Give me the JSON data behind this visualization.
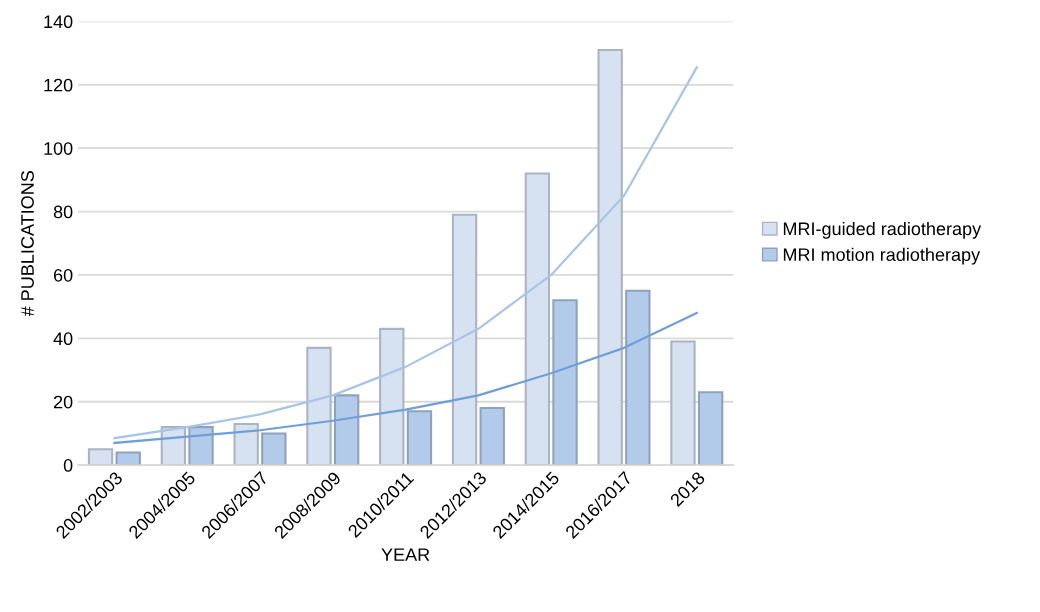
{
  "chart_data": {
    "type": "bar",
    "xlabel": "YEAR",
    "ylabel": "# PUBLICATIONS",
    "categories": [
      "2002/2003",
      "2004/2005",
      "2006/2007",
      "2008/2009",
      "2010/2011",
      "2012/2013",
      "2014/2015",
      "2016/2017",
      "2018"
    ],
    "series": [
      {
        "name": "MRI-guided radiotherapy",
        "color": "#d6e1f2",
        "values": [
          5,
          12,
          13,
          37,
          43,
          79,
          92,
          131,
          39
        ]
      },
      {
        "name": "MRI motion radiotherapy",
        "color": "#b3cbea",
        "values": [
          4,
          12,
          10,
          22,
          17,
          18,
          52,
          55,
          23
        ]
      },
      {
        "type": "line",
        "color": "#a9c4e6",
        "values": [
          8.5,
          12,
          16,
          22,
          31,
          43,
          60,
          85,
          125.5
        ]
      },
      {
        "type": "line",
        "color": "#6f9fd8",
        "values": [
          7,
          9,
          11,
          14,
          17.5,
          22,
          29,
          37,
          48
        ]
      }
    ],
    "ylim": [
      0,
      140
    ],
    "yticks": [
      0,
      20,
      40,
      60,
      80,
      100,
      120,
      140
    ],
    "grid": "y",
    "legend": "right"
  }
}
